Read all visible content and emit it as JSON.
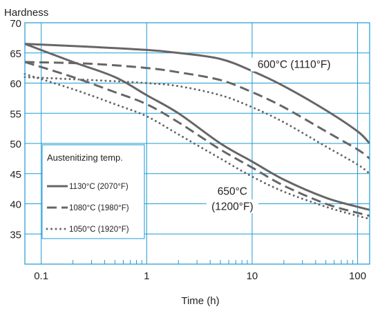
{
  "chart_data": {
    "type": "line",
    "ylabel": "Hardness",
    "xlabel": "Time (h)",
    "x_scale": "log",
    "xlim": [
      0.07,
      130
    ],
    "ylim": [
      30,
      70
    ],
    "x_ticks": [
      0.1,
      1,
      10,
      100
    ],
    "x_tick_labels": [
      "0.1",
      "1",
      "10",
      "100"
    ],
    "y_ticks": [
      35,
      40,
      45,
      50,
      55,
      60,
      65,
      70
    ],
    "y_tick_labels": [
      "35",
      "40",
      "45",
      "50",
      "55",
      "60",
      "65",
      "70"
    ],
    "grid": true,
    "legend": {
      "title": "Austenitizing temp.",
      "placement": "bottom-left",
      "entries": [
        {
          "label": "1130°C (2070°F)",
          "style": "solid"
        },
        {
          "label": "1080°C (1980°F)",
          "style": "dashed"
        },
        {
          "label": "1050°C (1920°F)",
          "style": "dotted"
        }
      ]
    },
    "annotations": [
      {
        "text": "600°C (1110°F)",
        "x": 25,
        "y": 62.5
      },
      {
        "text": "650°C",
        "x": 6.5,
        "y": 41.5
      },
      {
        "text": "(1200°F)",
        "x": 6.5,
        "y": 39
      }
    ],
    "series": [
      {
        "group": "600°C (1110°F)",
        "legend": "1130°C (2070°F)",
        "style": "solid",
        "x": [
          0.07,
          0.3,
          1,
          2,
          5,
          10,
          20,
          50,
          100,
          130
        ],
        "y": [
          66.5,
          66,
          65.5,
          65,
          64,
          62,
          59.5,
          55.5,
          52,
          50
        ]
      },
      {
        "group": "600°C (1110°F)",
        "legend": "1080°C (1980°F)",
        "style": "dashed",
        "x": [
          0.07,
          0.3,
          1,
          2,
          5,
          10,
          20,
          50,
          100,
          130
        ],
        "y": [
          63.5,
          63.2,
          62.5,
          61.8,
          60.5,
          58.5,
          56,
          52,
          49,
          47.5
        ]
      },
      {
        "group": "600°C (1110°F)",
        "legend": "1050°C (1920°F)",
        "style": "dotted",
        "x": [
          0.07,
          0.3,
          1,
          2,
          5,
          10,
          20,
          50,
          100,
          130
        ],
        "y": [
          61,
          60.5,
          60,
          59.5,
          58,
          56,
          53.5,
          49.5,
          46.5,
          45
        ]
      },
      {
        "group": "650°C (1200°F)",
        "legend": "1130°C (2070°F)",
        "style": "solid",
        "x": [
          0.07,
          0.2,
          0.5,
          1,
          2,
          5,
          10,
          20,
          50,
          100,
          130
        ],
        "y": [
          66.5,
          63.5,
          61,
          58,
          55,
          50,
          47,
          44,
          41,
          39.5,
          39
        ]
      },
      {
        "group": "650°C (1200°F)",
        "legend": "1080°C (1980°F)",
        "style": "dashed",
        "x": [
          0.07,
          0.2,
          0.5,
          1,
          2,
          5,
          10,
          20,
          50,
          100,
          130
        ],
        "y": [
          63.5,
          61,
          58.5,
          56.5,
          53.5,
          49,
          46,
          43,
          40,
          38.5,
          38
        ]
      },
      {
        "group": "650°C (1200°F)",
        "legend": "1050°C (1920°F)",
        "style": "dotted",
        "x": [
          0.07,
          0.2,
          0.5,
          1,
          2,
          5,
          10,
          20,
          50,
          100,
          130
        ],
        "y": [
          61.5,
          59,
          56.5,
          54.5,
          51.5,
          47.5,
          44.5,
          42,
          39.5,
          38,
          37.5
        ]
      }
    ]
  }
}
